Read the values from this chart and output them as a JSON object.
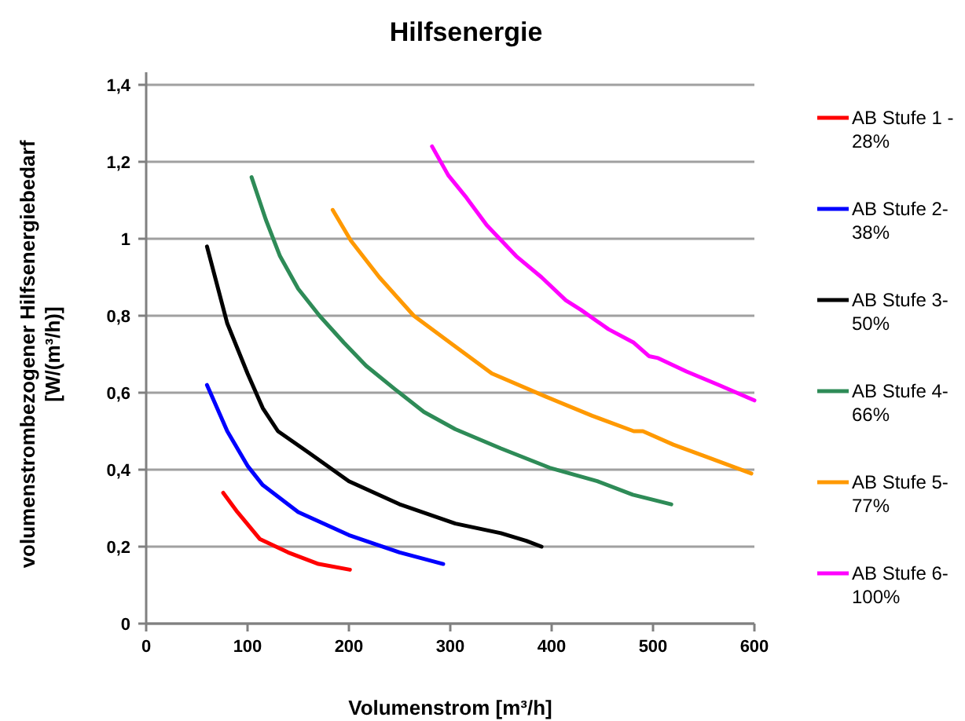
{
  "chart_data": {
    "type": "line",
    "title": "Hilfsenergie",
    "xlabel": "Volumenstrom  [m³/h]",
    "ylabel": "volumenstrombezogener  Hilfsenergiebedarf\n[W/(m³/h)]",
    "xlim": [
      0,
      600
    ],
    "xticks": [
      0,
      100,
      200,
      300,
      400,
      500,
      600
    ],
    "ylim": [
      0,
      1.4
    ],
    "yticks": [
      0,
      {
        "value": 0.2,
        "label": "0,2"
      },
      {
        "value": 0.4,
        "label": "0,4"
      },
      {
        "value": 0.6,
        "label": "0,6"
      },
      {
        "value": 0.8,
        "label": "0,8"
      },
      1,
      {
        "value": 1.2,
        "label": "1,2"
      },
      {
        "value": 1.4,
        "label": "1,4"
      }
    ],
    "grid": "y",
    "legend": "right",
    "marker": "none",
    "line_style": "solid",
    "series": [
      {
        "name": "AB Stufe 1 - 28%",
        "color": "#ff0000",
        "x": [
          76,
          90,
          112,
          140,
          170,
          201
        ],
        "values": [
          0.34,
          0.29,
          0.22,
          0.185,
          0.155,
          0.14
        ]
      },
      {
        "name": "AB Stufe 2- 38%",
        "color": "#0000ff",
        "x": [
          60,
          80,
          100,
          115,
          150,
          200,
          250,
          293
        ],
        "values": [
          0.62,
          0.5,
          0.41,
          0.36,
          0.29,
          0.23,
          0.185,
          0.155
        ]
      },
      {
        "name": "AB Stufe 3- 50%",
        "color": "#000000",
        "x": [
          60,
          80,
          100,
          115,
          130,
          160,
          200,
          250,
          305,
          350,
          375,
          390
        ],
        "values": [
          0.98,
          0.78,
          0.65,
          0.56,
          0.5,
          0.445,
          0.37,
          0.31,
          0.26,
          0.235,
          0.215,
          0.2
        ]
      },
      {
        "name": "AB Stufe 4- 66%",
        "color": "#2e8b57",
        "x": [
          104,
          118,
          132,
          150,
          171,
          195,
          217,
          245,
          274,
          305,
          350,
          398,
          445,
          480,
          518
        ],
        "values": [
          1.16,
          1.05,
          0.955,
          0.87,
          0.8,
          0.73,
          0.67,
          0.61,
          0.55,
          0.505,
          0.455,
          0.405,
          0.37,
          0.335,
          0.31
        ]
      },
      {
        "name": "AB Stufe 5- 77%",
        "color": "#ff9900",
        "x": [
          184,
          202,
          230,
          264,
          305,
          341,
          394,
          440,
          481,
          490,
          520,
          549,
          597
        ],
        "values": [
          1.075,
          0.995,
          0.9,
          0.8,
          0.72,
          0.65,
          0.59,
          0.54,
          0.5,
          0.5,
          0.465,
          0.437,
          0.39
        ]
      },
      {
        "name": "AB Stufe 6- 100%",
        "color": "#ff00ff",
        "x": [
          282,
          298,
          315,
          336,
          365,
          390,
          414,
          429,
          456,
          481,
          496,
          505,
          533,
          565,
          600
        ],
        "values": [
          1.24,
          1.165,
          1.11,
          1.035,
          0.955,
          0.9,
          0.84,
          0.815,
          0.765,
          0.73,
          0.695,
          0.69,
          0.655,
          0.62,
          0.58
        ]
      }
    ]
  }
}
